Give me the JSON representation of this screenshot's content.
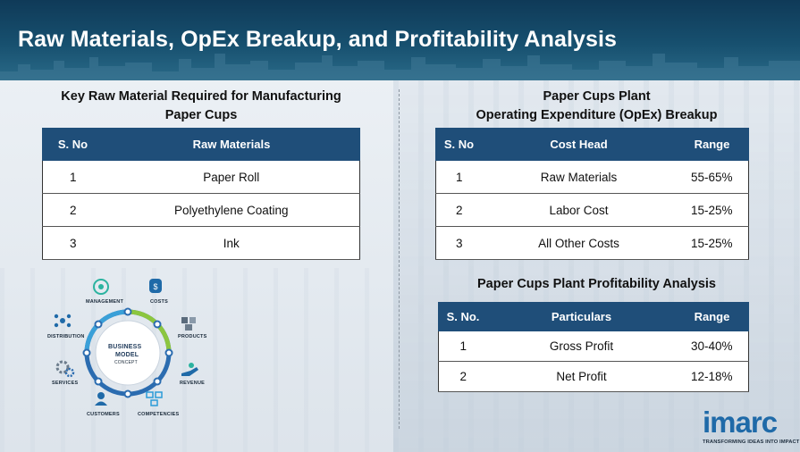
{
  "header": {
    "title": "Raw Materials, OpEx Breakup, and Profitability Analysis"
  },
  "raw_materials": {
    "title_line1": "Key Raw Material Required for Manufacturing",
    "title_line2": "Paper Cups",
    "headers": [
      "S. No",
      "Raw Materials"
    ],
    "rows": [
      [
        "1",
        "Paper Roll"
      ],
      [
        "2",
        "Polyethylene Coating"
      ],
      [
        "3",
        "Ink"
      ]
    ]
  },
  "opex": {
    "title_line1": "Paper Cups Plant",
    "title_line2": "Operating Expenditure (OpEx) Breakup",
    "headers": [
      "S. No",
      "Cost Head",
      "Range"
    ],
    "rows": [
      [
        "1",
        "Raw Materials",
        "55-65%"
      ],
      [
        "2",
        "Labor Cost",
        "15-25%"
      ],
      [
        "3",
        "All Other Costs",
        "15-25%"
      ]
    ]
  },
  "profitability": {
    "title": "Paper Cups Plant Profitability Analysis",
    "headers": [
      "S. No.",
      "Particulars",
      "Range"
    ],
    "rows": [
      [
        "1",
        "Gross Profit",
        "30-40%"
      ],
      [
        "2",
        "Net Profit",
        "12-18%"
      ]
    ]
  },
  "diagram": {
    "center_line1": "BUSINESS",
    "center_line2": "MODEL",
    "center_line3": "CONCEPT",
    "labels": {
      "management": "MANAGEMENT",
      "costs": "COSTS",
      "products": "PRODUCTS",
      "revenue": "REVENUE",
      "competencies": "COMPETENCIES",
      "customers": "CUSTOMERS",
      "services": "SERVICES",
      "distribution": "DISTRIBUTION"
    }
  },
  "logo": {
    "name": "imarc",
    "tagline": "TRANSFORMING IDEAS INTO IMPACT"
  }
}
